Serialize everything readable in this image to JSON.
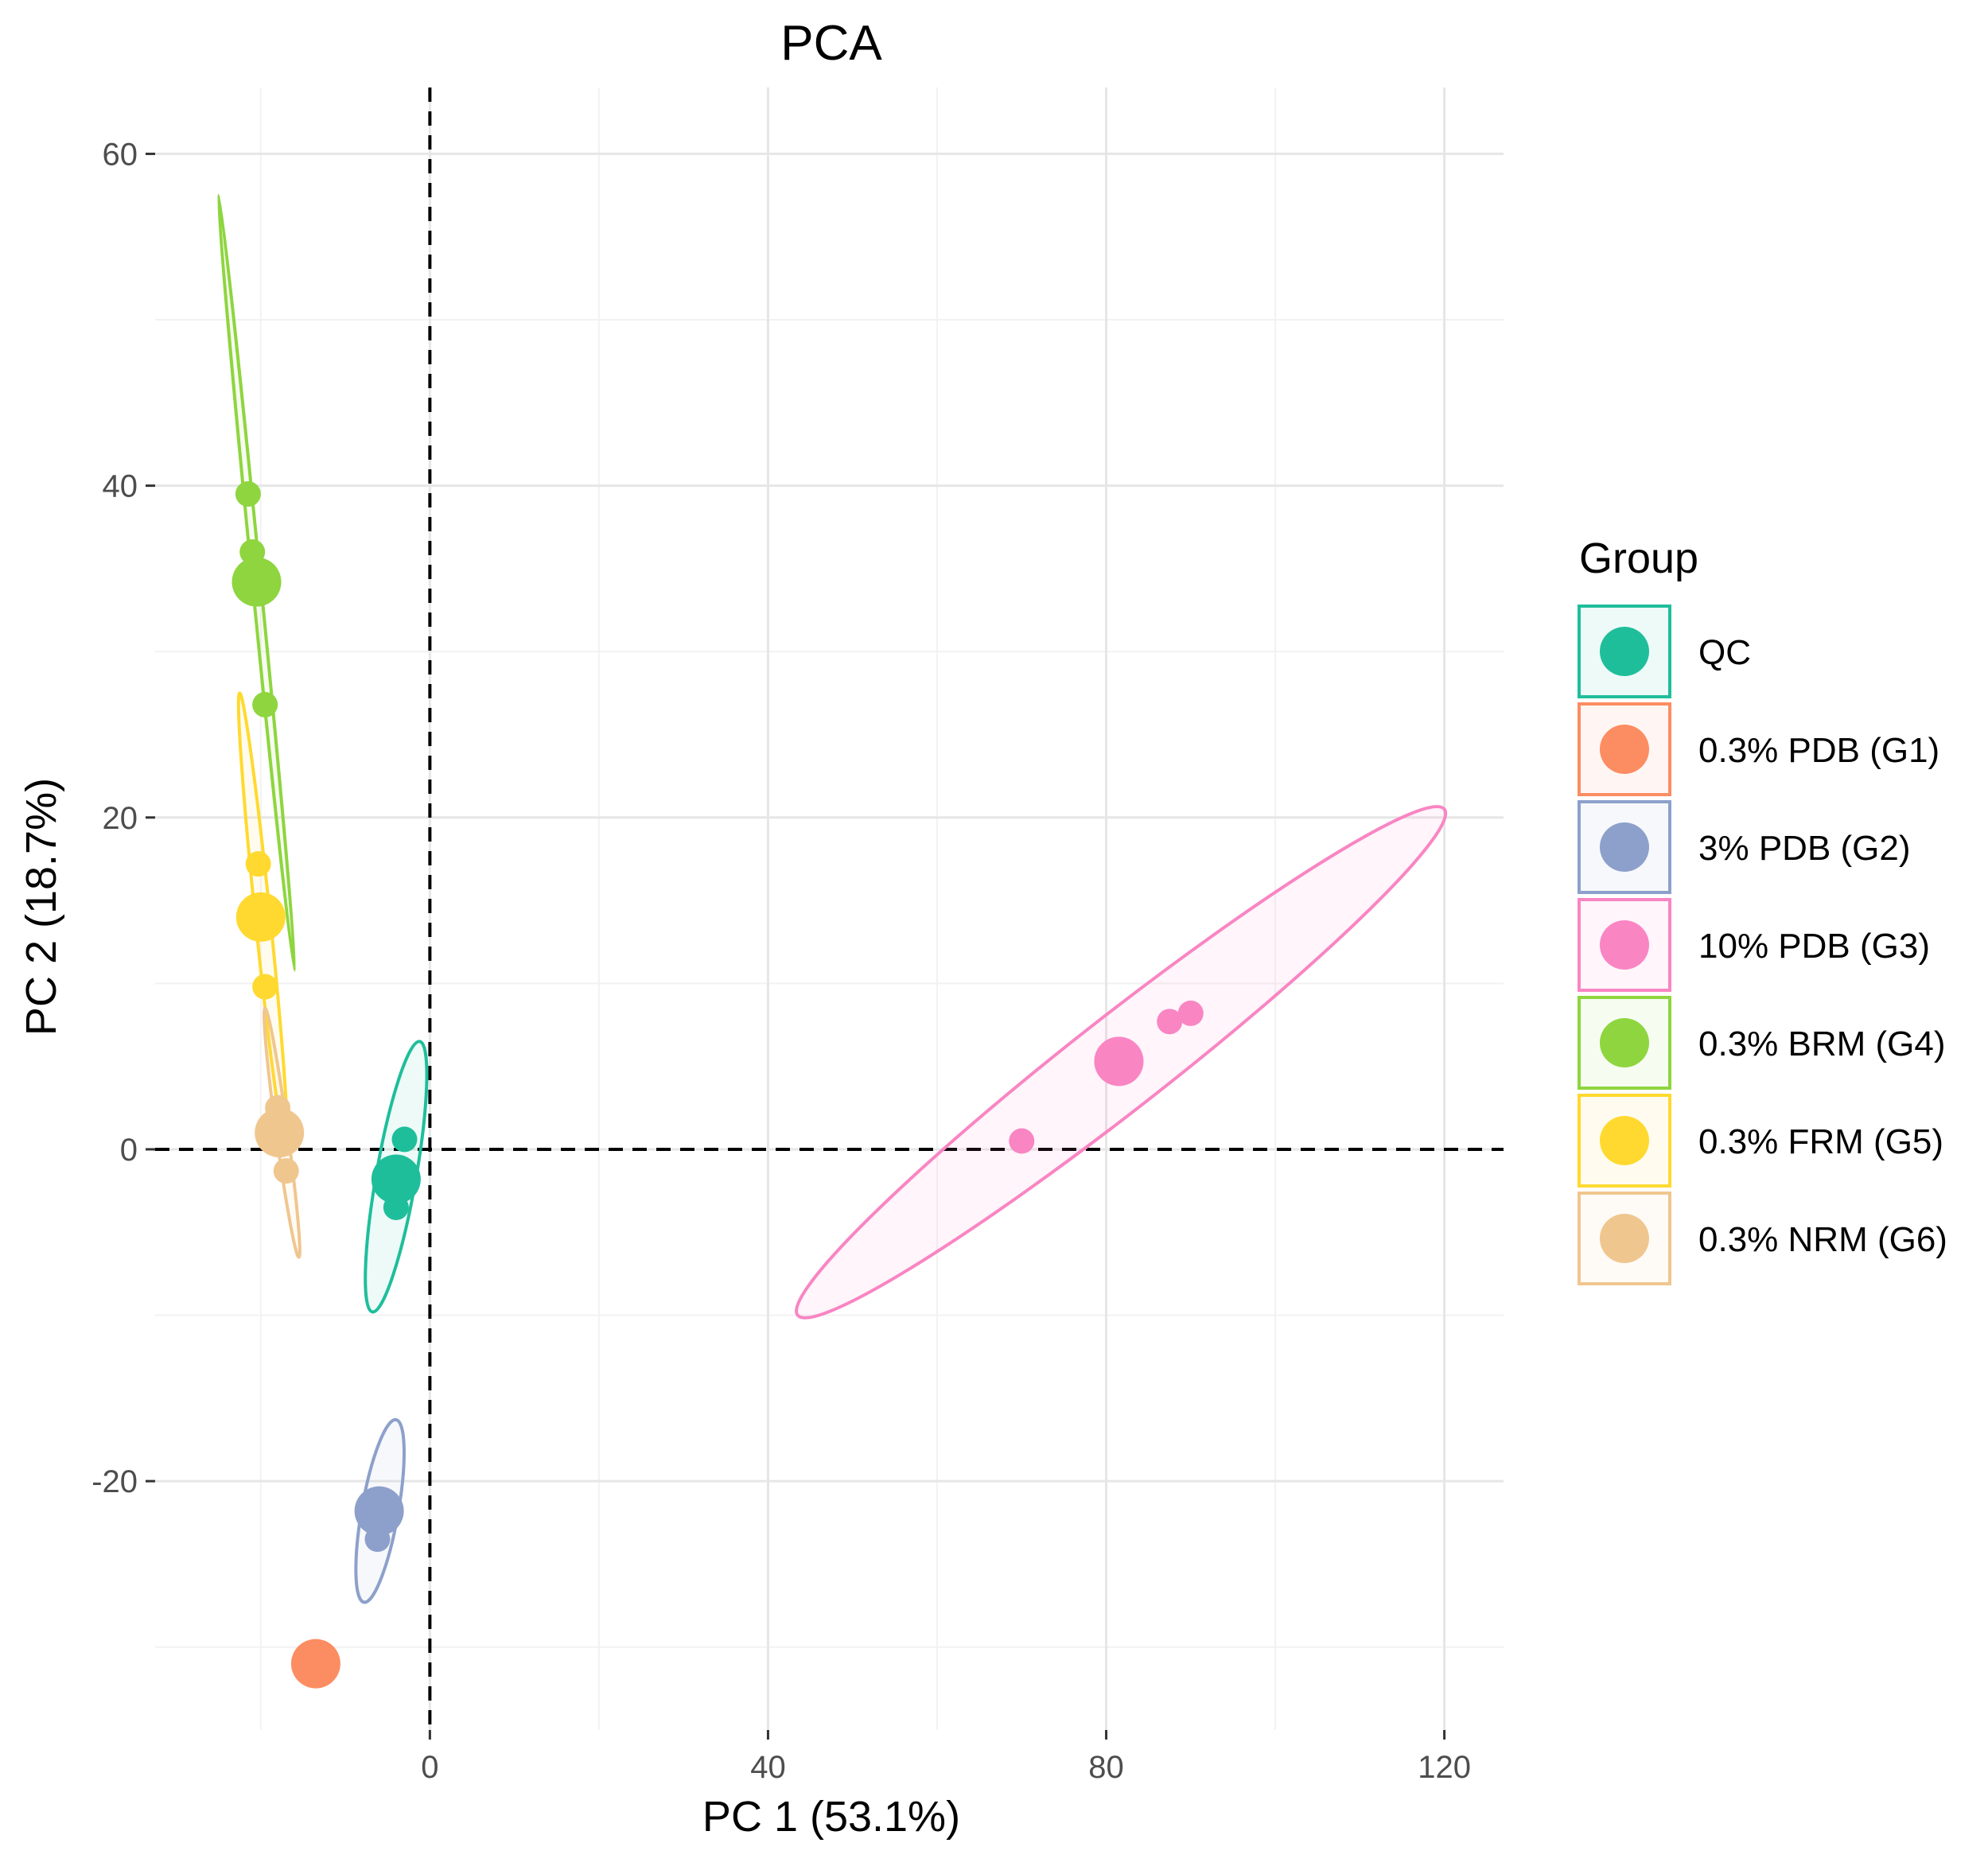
{
  "chart_data": {
    "type": "scatter",
    "title": "PCA",
    "xlabel": "PC 1 (53.1%)",
    "ylabel": "PC 2 (18.7%)",
    "xlim": [
      -32.5,
      127
    ],
    "ylim": [
      -35,
      64
    ],
    "x_ticks": [
      0,
      40,
      80,
      120
    ],
    "x_tick_labels": [
      "0",
      "40",
      "80",
      "120"
    ],
    "y_ticks": [
      -20,
      0,
      20,
      40,
      60
    ],
    "y_tick_labels": [
      "-20",
      "0",
      "20",
      "40",
      "60"
    ],
    "grid": true,
    "reference_lines": {
      "x": 0,
      "y": 0,
      "style": "dashed"
    },
    "legend": {
      "title": "Group",
      "position": "right"
    },
    "series": [
      {
        "name": "QC",
        "color": "#1FBE9B",
        "points": [
          [
            -3,
            0.6
          ],
          [
            -4,
            -3.5
          ]
        ],
        "centroid": [
          -4,
          -1.8
        ],
        "ellipse": {
          "end1": [
            -1.2,
            6.5
          ],
          "end2": [
            -6.8,
            -9.8
          ],
          "half_width": 1.2
        }
      },
      {
        "name": "0.3% PDB (G1)",
        "color": "#FC8D62",
        "points": [],
        "centroid": [
          -13.5,
          -31
        ]
      },
      {
        "name": "3% PDB (G2)",
        "color": "#8DA0CB",
        "points": [
          [
            -6.2,
            -23.5
          ]
        ],
        "centroid": [
          -6,
          -21.8
        ],
        "ellipse": {
          "end1": [
            -4,
            -16.3
          ],
          "end2": [
            -7.8,
            -27.3
          ],
          "half_width": 1.1
        }
      },
      {
        "name": "10% PDB (G3)",
        "color": "#F985C3",
        "points": [
          [
            70,
            0.5
          ],
          [
            87.5,
            7.7
          ],
          [
            90,
            8.2
          ]
        ],
        "centroid": [
          81.5,
          5.3
        ],
        "ellipse": {
          "end1": [
            120,
            20.5
          ],
          "end2": [
            43.5,
            -10
          ],
          "half_width": 2.8
        }
      },
      {
        "name": "0.3% BRM (G4)",
        "color": "#8ED53F",
        "points": [
          [
            -21.5,
            39.5
          ],
          [
            -21,
            36
          ],
          [
            -19.5,
            26.8
          ]
        ],
        "centroid": [
          -20.5,
          34.2
        ],
        "ellipse": {
          "end1": [
            -25,
            57.5
          ],
          "end2": [
            -16,
            10.8
          ],
          "half_width": 0.25
        }
      },
      {
        "name": "0.3% FRM (G5)",
        "color": "#FFD92F",
        "points": [
          [
            -20.3,
            17.2
          ],
          [
            -19.5,
            9.8
          ],
          [
            -18,
            2
          ]
        ],
        "centroid": [
          -20,
          14
        ],
        "ellipse": {
          "end1": [
            -22.5,
            27.5
          ],
          "end2": [
            -17,
            0.2
          ],
          "half_width": 0.45
        }
      },
      {
        "name": "0.3% NRM (G6)",
        "color": "#F0C68F",
        "points": [
          [
            -18,
            2.5
          ],
          [
            -17,
            -1.3
          ]
        ],
        "centroid": [
          -17.8,
          1
        ],
        "ellipse": {
          "end1": [
            -19.5,
            8.5
          ],
          "end2": [
            -15.5,
            -6.5
          ],
          "half_width": 0.35
        }
      }
    ]
  }
}
